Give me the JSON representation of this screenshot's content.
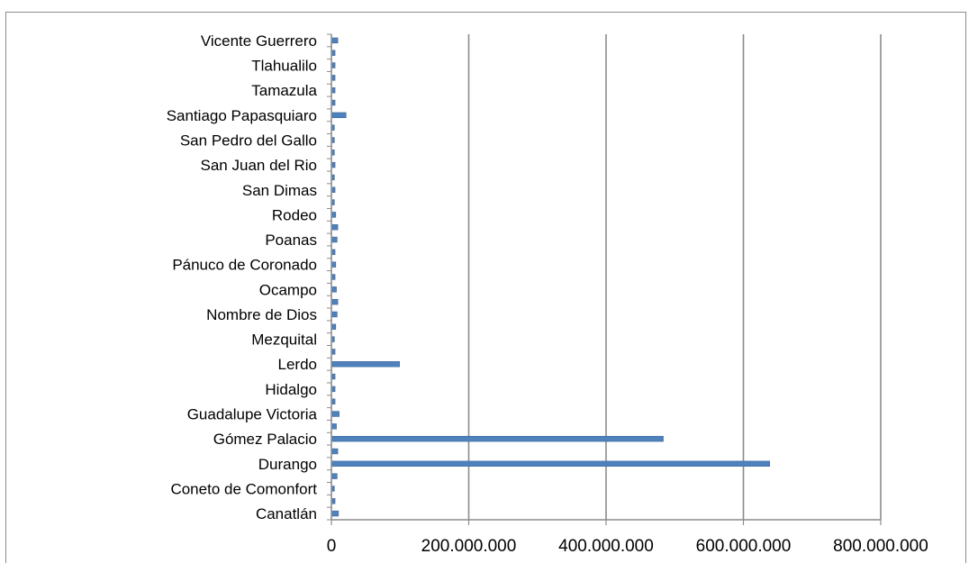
{
  "chart_data": {
    "type": "bar",
    "orientation": "horizontal",
    "title": "",
    "xlabel": "",
    "ylabel": "",
    "xlim": [
      0,
      800000000
    ],
    "x_ticks": [
      0,
      200000000,
      400000000,
      600000000,
      800000000
    ],
    "x_tick_labels": [
      "0",
      "200.000.000",
      "400.000.000",
      "600.000.000",
      "800.000.000"
    ],
    "grid": "vertical major gridlines",
    "legend": "none",
    "bar_color": "#4f81bd",
    "categories": [
      "Canatlán",
      "",
      "Coneto de Comonfort",
      "",
      "Durango",
      "",
      "Gómez Palacio",
      "",
      "Guadalupe Victoria",
      "",
      "Hidalgo",
      "",
      "Lerdo",
      "",
      "Mezquital",
      "",
      "Nombre de Dios",
      "",
      "Ocampo",
      "",
      "Pánuco de Coronado",
      "",
      "Poanas",
      "",
      "Rodeo",
      "",
      "San Dimas",
      "",
      "San Juan del Rio",
      "",
      "San Pedro del Gallo",
      "",
      "Santiago Papasquiaro",
      "",
      "Tamazula",
      "",
      "Tlahualilo",
      "",
      "Vicente Guerrero"
    ],
    "values": [
      9000000,
      4000000,
      3000000,
      7000000,
      637000000,
      8000000,
      482000000,
      6000000,
      10000000,
      4000000,
      4000000,
      4000000,
      98000000,
      4000000,
      3000000,
      5000000,
      7000000,
      8000000,
      6000000,
      4000000,
      5000000,
      4000000,
      7000000,
      8000000,
      5000000,
      3000000,
      4000000,
      3000000,
      4000000,
      3000000,
      3000000,
      3000000,
      20000000,
      4000000,
      4000000,
      4000000,
      4000000,
      4000000,
      8000000
    ]
  }
}
